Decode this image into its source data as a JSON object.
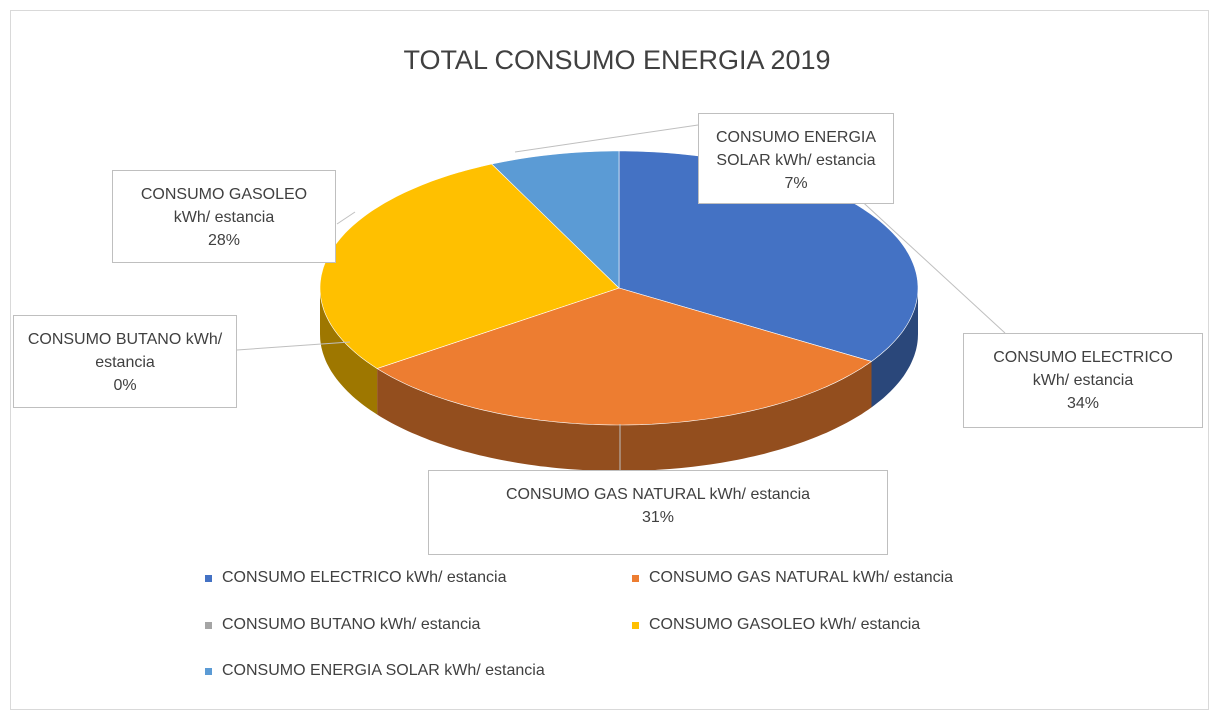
{
  "chart_data": {
    "type": "pie3d",
    "title": "TOTAL CONSUMO ENERGIA 2019",
    "categories": [
      "CONSUMO ELECTRICO kWh/ estancia",
      "CONSUMO GAS NATURAL kWh/ estancia",
      "CONSUMO BUTANO kWh/ estancia",
      "CONSUMO GASOLEO kWh/ estancia",
      "CONSUMO ENERGIA SOLAR kWh/ estancia"
    ],
    "values": [
      34,
      31,
      0,
      28,
      7
    ],
    "value_labels": [
      "34%",
      "31%",
      "0%",
      "28%",
      "7%"
    ],
    "colors": [
      "#4472c4",
      "#ed7d31",
      "#a5a5a5",
      "#ffc000",
      "#5b9bd5"
    ],
    "legend": "bottom"
  }
}
